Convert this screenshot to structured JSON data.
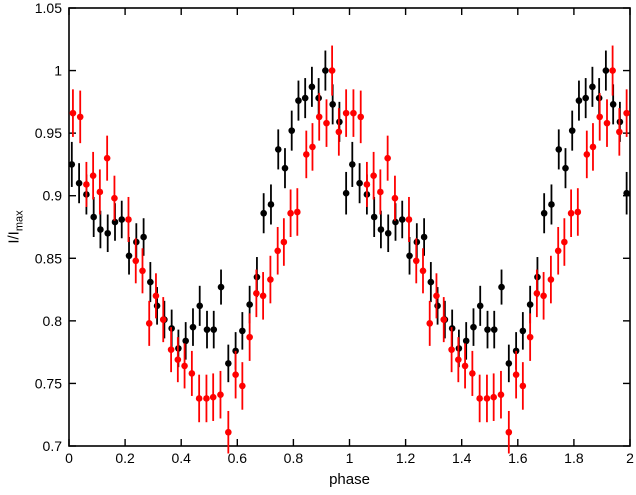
{
  "figure": {
    "background": "#ffffff",
    "ylabel_main": "I/I",
    "ylabel_sub": "max"
  },
  "chart_data": {
    "type": "scatter",
    "title": "",
    "xlabel": "phase",
    "ylabel": "I/I_max",
    "xlim": [
      0,
      2
    ],
    "ylim": [
      0.7,
      1.05
    ],
    "xticks": [
      0,
      0.2,
      0.4,
      0.6,
      0.8,
      1,
      1.2,
      1.4,
      1.6,
      1.8,
      2
    ],
    "yticks": [
      0.7,
      0.75,
      0.8,
      0.85,
      0.9,
      0.95,
      1,
      1.05
    ],
    "grid": false,
    "legend": null,
    "frame": "box-with-mirrored-ticks",
    "marker": "filled-circle",
    "error_bars": "vertical-no-caps",
    "note": "Phase-folded light curve; the single-cycle data below is plotted twice, at phase and phase+1 (x_repeat_offsets).",
    "x_repeat_offsets": [
      0.0,
      1.0
    ],
    "series": [
      {
        "name": "black-lightcurve",
        "color": "#000000",
        "points": [
          [
            0.01,
            0.925,
            0.018
          ],
          [
            0.036,
            0.91,
            0.016
          ],
          [
            0.062,
            0.901,
            0.016
          ],
          [
            0.088,
            0.883,
            0.016
          ],
          [
            0.112,
            0.873,
            0.015
          ],
          [
            0.138,
            0.87,
            0.015
          ],
          [
            0.164,
            0.879,
            0.015
          ],
          [
            0.188,
            0.881,
            0.015
          ],
          [
            0.214,
            0.852,
            0.015
          ],
          [
            0.24,
            0.863,
            0.015
          ],
          [
            0.266,
            0.867,
            0.015
          ],
          [
            0.29,
            0.831,
            0.016
          ],
          [
            0.314,
            0.812,
            0.015
          ],
          [
            0.34,
            0.801,
            0.015
          ],
          [
            0.366,
            0.794,
            0.015
          ],
          [
            0.39,
            0.778,
            0.015
          ],
          [
            0.416,
            0.784,
            0.015
          ],
          [
            0.442,
            0.795,
            0.015
          ],
          [
            0.466,
            0.812,
            0.016
          ],
          [
            0.492,
            0.793,
            0.015
          ],
          [
            0.516,
            0.793,
            0.015
          ],
          [
            0.542,
            0.827,
            0.014
          ],
          [
            0.568,
            0.766,
            0.015
          ],
          [
            0.594,
            0.776,
            0.015
          ],
          [
            0.618,
            0.792,
            0.015
          ],
          [
            0.644,
            0.813,
            0.015
          ],
          [
            0.67,
            0.835,
            0.016
          ],
          [
            0.694,
            0.886,
            0.016
          ],
          [
            0.72,
            0.893,
            0.016
          ],
          [
            0.746,
            0.937,
            0.016
          ],
          [
            0.77,
            0.922,
            0.016
          ],
          [
            0.794,
            0.952,
            0.016
          ],
          [
            0.818,
            0.976,
            0.016
          ],
          [
            0.842,
            0.978,
            0.016
          ],
          [
            0.866,
            0.987,
            0.016
          ],
          [
            0.89,
            0.978,
            0.016
          ],
          [
            0.914,
            1.0,
            0.016
          ],
          [
            0.94,
            0.973,
            0.016
          ],
          [
            0.964,
            0.959,
            0.016
          ],
          [
            0.988,
            0.902,
            0.017
          ]
        ]
      },
      {
        "name": "red-lightcurve",
        "color": "#ff0000",
        "points": [
          [
            0.014,
            0.966,
            0.019
          ],
          [
            0.04,
            0.963,
            0.021
          ],
          [
            0.062,
            0.909,
            0.018
          ],
          [
            0.086,
            0.916,
            0.019
          ],
          [
            0.11,
            0.903,
            0.018
          ],
          [
            0.136,
            0.93,
            0.018
          ],
          [
            0.162,
            0.898,
            0.018
          ],
          [
            0.212,
            0.881,
            0.018
          ],
          [
            0.238,
            0.848,
            0.018
          ],
          [
            0.262,
            0.84,
            0.018
          ],
          [
            0.286,
            0.798,
            0.018
          ],
          [
            0.31,
            0.82,
            0.018
          ],
          [
            0.336,
            0.801,
            0.018
          ],
          [
            0.364,
            0.777,
            0.018
          ],
          [
            0.388,
            0.769,
            0.018
          ],
          [
            0.412,
            0.764,
            0.018
          ],
          [
            0.438,
            0.758,
            0.018
          ],
          [
            0.464,
            0.738,
            0.019
          ],
          [
            0.49,
            0.738,
            0.019
          ],
          [
            0.514,
            0.739,
            0.019
          ],
          [
            0.54,
            0.741,
            0.019
          ],
          [
            0.568,
            0.711,
            0.017
          ],
          [
            0.594,
            0.757,
            0.019
          ],
          [
            0.618,
            0.748,
            0.019
          ],
          [
            0.644,
            0.787,
            0.019
          ],
          [
            0.668,
            0.822,
            0.019
          ],
          [
            0.692,
            0.82,
            0.019
          ],
          [
            0.718,
            0.833,
            0.019
          ],
          [
            0.744,
            0.856,
            0.019
          ],
          [
            0.766,
            0.863,
            0.019
          ],
          [
            0.79,
            0.886,
            0.019
          ],
          [
            0.814,
            0.887,
            0.019
          ],
          [
            0.846,
            0.933,
            0.019
          ],
          [
            0.868,
            0.939,
            0.019
          ],
          [
            0.892,
            0.963,
            0.019
          ],
          [
            0.918,
            0.958,
            0.019
          ],
          [
            0.938,
            1.0,
            0.02
          ],
          [
            0.962,
            0.951,
            0.019
          ],
          [
            0.988,
            0.966,
            0.019
          ]
        ]
      }
    ]
  }
}
